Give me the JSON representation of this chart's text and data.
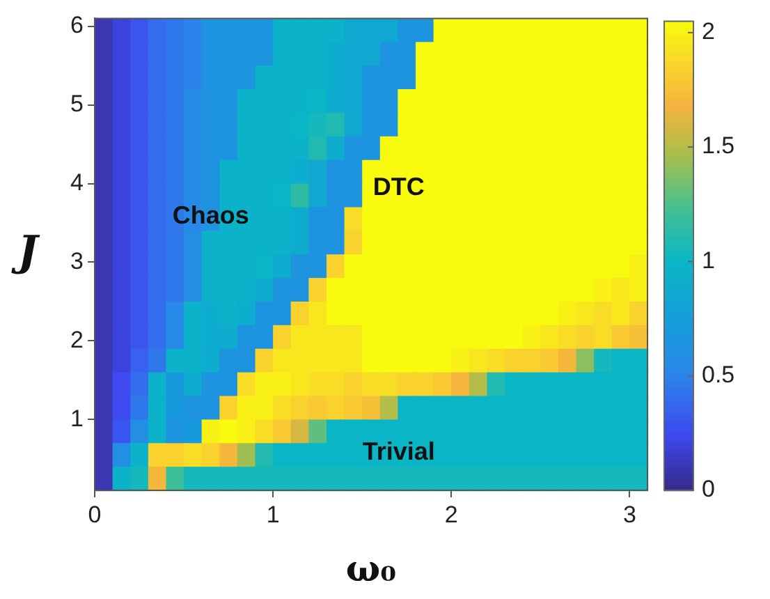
{
  "chart_data": {
    "type": "heatmap",
    "xlabel": "ω₀",
    "ylabel": "J",
    "xlim": [
      0,
      3.1
    ],
    "ylim": [
      0.1,
      6.1
    ],
    "xticks": [
      0,
      1,
      2,
      3
    ],
    "yticks": [
      1,
      2,
      3,
      4,
      5,
      6
    ],
    "clim": [
      0,
      2.05
    ],
    "cticks": [
      0,
      0.5,
      1,
      1.5,
      2
    ],
    "annotations": [
      "Chaos",
      "DTC",
      "Trivial"
    ],
    "cells": [
      [
        0.1,
        0.2,
        0.3,
        0.4,
        0.45,
        0.5,
        0.65,
        0.65,
        0.65,
        0.65,
        0.95,
        0.95,
        0.95,
        0.95,
        0.85,
        0.85,
        0.85,
        0.65,
        0.65,
        2.05,
        2.05,
        2.05,
        2.05,
        2.05,
        2.05,
        2.05,
        2.05,
        2.05,
        2.05,
        2.05,
        2.05
      ],
      [
        0.1,
        0.2,
        0.3,
        0.4,
        0.45,
        0.5,
        0.65,
        0.65,
        0.65,
        0.65,
        0.95,
        0.95,
        0.95,
        0.9,
        0.85,
        0.85,
        0.65,
        0.65,
        2.05,
        2.05,
        2.05,
        2.05,
        2.05,
        2.05,
        2.05,
        2.05,
        2.05,
        2.05,
        2.05,
        2.05,
        2.05
      ],
      [
        0.1,
        0.2,
        0.3,
        0.4,
        0.45,
        0.5,
        0.65,
        0.65,
        0.65,
        0.95,
        0.95,
        0.95,
        0.95,
        0.9,
        0.85,
        0.65,
        0.65,
        0.65,
        2.05,
        2.05,
        2.05,
        2.05,
        2.05,
        2.05,
        2.05,
        2.05,
        2.05,
        2.05,
        2.05,
        2.05,
        2.05
      ],
      [
        0.1,
        0.2,
        0.3,
        0.4,
        0.45,
        0.55,
        0.65,
        0.65,
        0.95,
        0.95,
        0.95,
        0.95,
        1.0,
        0.9,
        0.85,
        0.65,
        0.65,
        2.05,
        2.05,
        2.05,
        2.05,
        2.05,
        2.05,
        2.05,
        2.05,
        2.05,
        2.05,
        2.05,
        2.05,
        2.05,
        2.05
      ],
      [
        0.1,
        0.2,
        0.3,
        0.4,
        0.45,
        0.55,
        0.65,
        0.65,
        0.95,
        0.95,
        0.95,
        1.0,
        1.05,
        1.1,
        0.85,
        0.65,
        0.65,
        2.05,
        2.05,
        2.05,
        2.05,
        2.05,
        2.05,
        2.05,
        2.05,
        2.05,
        2.05,
        2.05,
        2.05,
        2.05,
        2.05
      ],
      [
        0.1,
        0.2,
        0.3,
        0.4,
        0.45,
        0.55,
        0.65,
        0.65,
        0.95,
        0.95,
        0.95,
        0.95,
        1.1,
        0.9,
        0.65,
        0.65,
        2.05,
        2.05,
        2.05,
        2.05,
        2.05,
        2.05,
        2.05,
        2.05,
        2.05,
        2.05,
        2.05,
        2.05,
        2.05,
        2.05,
        2.05
      ],
      [
        0.1,
        0.2,
        0.3,
        0.4,
        0.45,
        0.55,
        0.65,
        0.95,
        0.95,
        0.95,
        0.95,
        0.9,
        0.85,
        0.65,
        0.65,
        2.05,
        2.05,
        2.05,
        2.05,
        2.05,
        2.05,
        2.05,
        2.05,
        2.05,
        2.05,
        2.05,
        2.05,
        2.05,
        2.05,
        2.05,
        2.05
      ],
      [
        0.1,
        0.2,
        0.3,
        0.4,
        0.45,
        0.55,
        0.65,
        0.95,
        0.95,
        0.95,
        1.0,
        1.15,
        0.85,
        0.65,
        0.65,
        2.05,
        2.05,
        2.05,
        2.05,
        2.05,
        2.05,
        2.05,
        2.05,
        2.05,
        2.05,
        2.05,
        2.05,
        2.05,
        2.05,
        2.05,
        2.05
      ],
      [
        0.1,
        0.2,
        0.3,
        0.4,
        0.45,
        0.55,
        0.65,
        0.95,
        0.95,
        0.95,
        0.95,
        0.9,
        0.65,
        0.65,
        1.9,
        2.05,
        2.05,
        2.05,
        2.05,
        2.05,
        2.05,
        2.05,
        2.05,
        2.05,
        2.05,
        2.05,
        2.05,
        2.05,
        2.05,
        2.05,
        2.05
      ],
      [
        0.1,
        0.2,
        0.3,
        0.4,
        0.45,
        0.6,
        0.95,
        0.95,
        0.95,
        0.95,
        0.95,
        0.9,
        0.65,
        0.65,
        1.85,
        2.05,
        2.05,
        2.05,
        2.05,
        2.05,
        2.05,
        2.05,
        2.05,
        2.05,
        2.05,
        2.05,
        2.05,
        2.05,
        2.05,
        2.05,
        2.05
      ],
      [
        0.1,
        0.2,
        0.3,
        0.4,
        0.45,
        0.6,
        0.95,
        0.95,
        0.95,
        1.0,
        0.9,
        0.65,
        0.65,
        1.85,
        2.05,
        2.05,
        2.05,
        2.05,
        2.05,
        2.05,
        2.05,
        2.05,
        2.05,
        2.05,
        2.05,
        2.05,
        2.05,
        2.05,
        2.05,
        2.05,
        2.0
      ],
      [
        0.1,
        0.2,
        0.3,
        0.4,
        0.45,
        0.6,
        0.95,
        0.95,
        0.95,
        0.9,
        0.65,
        0.65,
        1.85,
        2.05,
        2.05,
        2.05,
        2.05,
        2.05,
        2.05,
        2.05,
        2.05,
        2.05,
        2.05,
        2.05,
        2.05,
        2.05,
        2.05,
        2.05,
        2.0,
        1.95,
        2.0
      ],
      [
        0.1,
        0.2,
        0.3,
        0.4,
        0.55,
        0.95,
        0.9,
        0.95,
        0.9,
        0.65,
        0.65,
        1.85,
        1.95,
        2.05,
        2.05,
        2.05,
        2.05,
        2.05,
        2.05,
        2.05,
        2.05,
        2.05,
        2.05,
        2.05,
        2.05,
        2.05,
        2.0,
        1.95,
        1.9,
        1.95,
        1.85
      ],
      [
        0.1,
        0.2,
        0.3,
        0.4,
        0.55,
        0.95,
        0.9,
        0.9,
        0.65,
        0.65,
        1.85,
        1.95,
        1.95,
        1.95,
        1.95,
        2.05,
        2.05,
        2.05,
        2.05,
        2.05,
        2.05,
        2.05,
        2.05,
        2.05,
        2.0,
        1.95,
        1.9,
        1.85,
        1.9,
        1.8,
        1.75
      ],
      [
        0.1,
        0.2,
        0.35,
        0.45,
        0.95,
        0.95,
        0.9,
        0.65,
        0.65,
        1.85,
        1.95,
        1.95,
        1.95,
        1.95,
        1.95,
        2.05,
        2.05,
        2.05,
        2.05,
        2.05,
        2.0,
        1.95,
        1.9,
        1.85,
        1.85,
        1.8,
        1.7,
        1.4,
        1.05,
        1.0,
        1.0
      ],
      [
        0.1,
        0.25,
        0.4,
        0.95,
        0.7,
        0.9,
        0.65,
        0.65,
        1.9,
        2.0,
        2.0,
        1.95,
        1.9,
        1.9,
        1.85,
        1.9,
        1.9,
        1.85,
        1.85,
        1.8,
        1.7,
        1.5,
        1.1,
        1.0,
        1.0,
        1.0,
        1.0,
        1.0,
        1.0,
        1.0,
        1.0
      ],
      [
        0.1,
        0.25,
        0.45,
        0.95,
        0.7,
        0.65,
        0.65,
        1.85,
        2.0,
        2.0,
        1.9,
        1.85,
        1.8,
        1.85,
        1.8,
        1.75,
        1.5,
        1.0,
        1.0,
        1.0,
        1.0,
        1.0,
        1.0,
        1.0,
        1.0,
        1.0,
        1.0,
        1.0,
        1.0,
        1.0,
        1.0
      ],
      [
        0.1,
        0.3,
        0.6,
        0.95,
        0.65,
        0.7,
        2.0,
        2.05,
        2.0,
        1.9,
        1.8,
        1.6,
        1.3,
        1.0,
        1.0,
        1.0,
        1.0,
        1.0,
        1.0,
        1.0,
        1.0,
        1.0,
        1.0,
        1.0,
        1.0,
        1.0,
        1.0,
        1.0,
        1.0,
        1.0,
        1.0
      ],
      [
        0.1,
        0.6,
        0.95,
        1.85,
        1.85,
        1.9,
        1.85,
        1.7,
        1.45,
        1.1,
        1.0,
        1.0,
        1.0,
        1.0,
        1.0,
        1.0,
        1.0,
        1.0,
        1.0,
        1.0,
        1.0,
        1.0,
        1.0,
        1.0,
        1.0,
        1.0,
        1.0,
        1.0,
        1.0,
        1.0,
        1.0
      ],
      [
        0.1,
        0.95,
        1.05,
        1.7,
        1.2,
        1.05,
        1.05,
        1.05,
        1.05,
        1.05,
        1.05,
        1.05,
        1.05,
        1.05,
        1.05,
        1.05,
        1.05,
        1.05,
        1.05,
        1.05,
        1.05,
        1.05,
        1.05,
        1.05,
        1.05,
        1.05,
        1.05,
        1.05,
        1.05,
        1.05,
        1.05
      ]
    ]
  }
}
